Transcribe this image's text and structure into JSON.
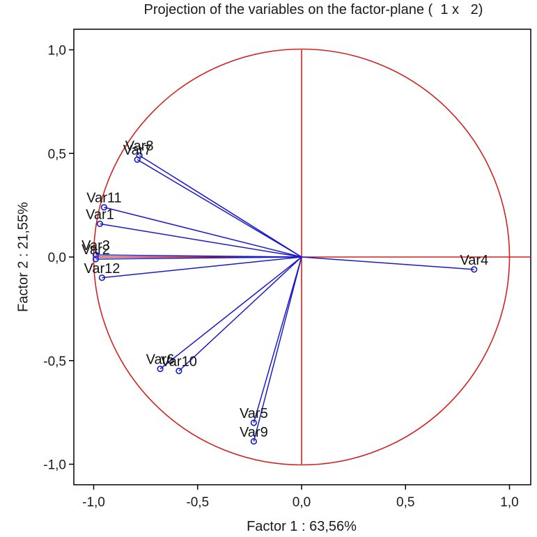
{
  "chart_data": {
    "type": "scatter",
    "title": "Projection of the variables on the factor-plane (  1 x   2)",
    "xlabel": "Factor 1 : 63,56%",
    "ylabel": "Factor 2 : 21,55%",
    "xlim": [
      -1.1,
      1.1
    ],
    "ylim": [
      -1.1,
      1.1
    ],
    "xticks": [
      -1.0,
      -0.5,
      0.0,
      0.5,
      1.0
    ],
    "yticks": [
      -1.0,
      -0.5,
      0.0,
      0.5,
      1.0
    ],
    "xtick_labels": [
      "-1,0",
      "-0,5",
      "0,0",
      "0,5",
      "1,0"
    ],
    "ytick_labels": [
      "-1,0",
      "-0,5",
      "0,0",
      "0,5",
      "1,0"
    ],
    "unit_circle": true,
    "grid": false,
    "colors": {
      "circle": "#d42020",
      "vectors": "#1a1acc",
      "axes": "#000000"
    },
    "points": [
      {
        "label": "Var1",
        "x": -0.97,
        "y": 0.16
      },
      {
        "label": "Var2",
        "x": -0.99,
        "y": -0.01
      },
      {
        "label": "Var3",
        "x": -0.99,
        "y": 0.01
      },
      {
        "label": "Var4",
        "x": 0.83,
        "y": -0.06
      },
      {
        "label": "Var5",
        "x": -0.23,
        "y": -0.8
      },
      {
        "label": "Var6",
        "x": -0.68,
        "y": -0.54
      },
      {
        "label": "Var7",
        "x": -0.79,
        "y": 0.47
      },
      {
        "label": "Var8",
        "x": -0.78,
        "y": 0.49
      },
      {
        "label": "Var9",
        "x": -0.23,
        "y": -0.89
      },
      {
        "label": "Var10",
        "x": -0.59,
        "y": -0.55
      },
      {
        "label": "Var11",
        "x": -0.95,
        "y": 0.24
      },
      {
        "label": "Var12",
        "x": -0.96,
        "y": -0.1
      }
    ]
  }
}
